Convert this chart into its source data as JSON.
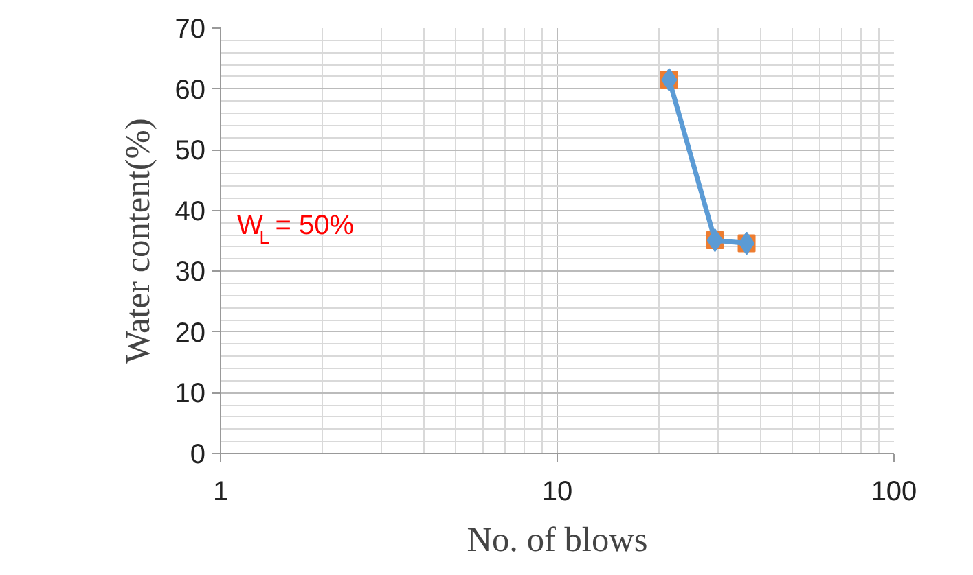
{
  "chart_data": {
    "type": "line",
    "xlabel": "No. of blows",
    "ylabel": "Water content(%)",
    "x": [
      21.5,
      29.4,
      36.5
    ],
    "series": [
      {
        "type": "scatter",
        "color": "#ed7d31",
        "marker": "square",
        "values": [
          61.5,
          35.1,
          34.6
        ]
      },
      {
        "color": "#5b9bd5",
        "marker": "diamond",
        "values": [
          61.5,
          35.1,
          34.6
        ]
      }
    ],
    "xlim": [
      1,
      100
    ],
    "xticks": [
      1,
      10,
      100
    ],
    "ylim": [
      0,
      70
    ],
    "yticks": [
      0,
      10,
      20,
      30,
      40,
      50,
      60,
      70
    ],
    "log": "x",
    "grid": true,
    "annotations": [
      "W$_{L}$ = 50%"
    ]
  }
}
